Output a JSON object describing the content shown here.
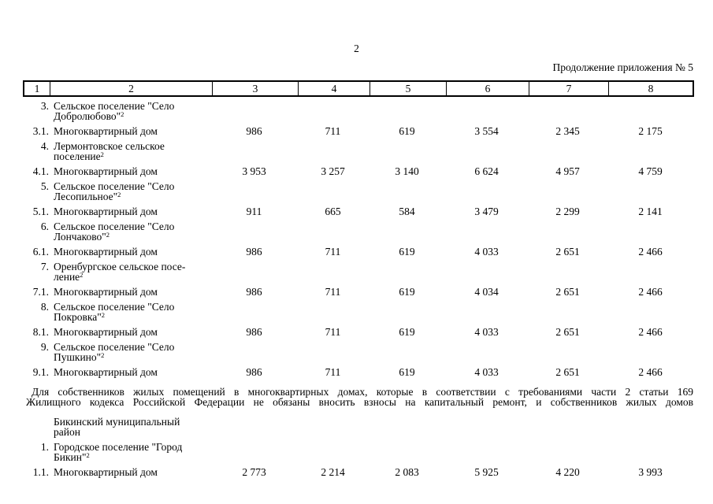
{
  "page": {
    "page_number": "2",
    "continuation_note": "Продолжение приложения № 5"
  },
  "table": {
    "column_headers": [
      "1",
      "2",
      "3",
      "4",
      "5",
      "6",
      "7",
      "8"
    ],
    "rows": [
      {
        "type": "name",
        "num": "3.",
        "name_lines": [
          "Сельское поселение \"Село",
          "Добролюбово\""
        ],
        "footnote": "2"
      },
      {
        "type": "data",
        "num": "3.1.",
        "name": "Многоквартирный дом",
        "values": [
          "986",
          "711",
          "619",
          "3 554",
          "2 345",
          "2 175"
        ]
      },
      {
        "type": "name",
        "num": "4.",
        "name_lines": [
          "Лермонтовское сельское",
          "поселение"
        ],
        "footnote": "2"
      },
      {
        "type": "data",
        "num": "4.1.",
        "name": "Многоквартирный дом",
        "values": [
          "3 953",
          "3 257",
          "3 140",
          "6 624",
          "4 957",
          "4 759"
        ]
      },
      {
        "type": "name",
        "num": "5.",
        "name_lines": [
          "Сельское поселение \"Село",
          "Лесопильное\""
        ],
        "footnote": "2"
      },
      {
        "type": "data",
        "num": "5.1.",
        "name": "Многоквартирный дом",
        "values": [
          "911",
          "665",
          "584",
          "3 479",
          "2 299",
          "2 141"
        ]
      },
      {
        "type": "name",
        "num": "6.",
        "name_lines": [
          "Сельское поселение \"Село",
          "Лончаково\""
        ],
        "footnote": "2"
      },
      {
        "type": "data",
        "num": "6.1.",
        "name": "Многоквартирный дом",
        "values": [
          "986",
          "711",
          "619",
          "4 033",
          "2 651",
          "2 466"
        ]
      },
      {
        "type": "name",
        "num": "7.",
        "name_lines": [
          "Оренбургское сельское посе-",
          "ление"
        ],
        "footnote": "2"
      },
      {
        "type": "data",
        "num": "7.1.",
        "name": "Многоквартирный дом",
        "values": [
          "986",
          "711",
          "619",
          "4 034",
          "2 651",
          "2 466"
        ]
      },
      {
        "type": "name",
        "num": "8.",
        "name_lines": [
          "Сельское поселение \"Село",
          "Покровка\""
        ],
        "footnote": "2"
      },
      {
        "type": "data",
        "num": "8.1.",
        "name": "Многоквартирный дом",
        "values": [
          "986",
          "711",
          "619",
          "4 033",
          "2 651",
          "2 466"
        ]
      },
      {
        "type": "name",
        "num": "9.",
        "name_lines": [
          "Сельское поселение \"Село",
          "Пушкино\""
        ],
        "footnote": "2"
      },
      {
        "type": "data",
        "num": "9.1.",
        "name": "Многоквартирный дом",
        "values": [
          "986",
          "711",
          "619",
          "4 033",
          "2 651",
          "2 466"
        ]
      },
      {
        "type": "note",
        "lines": [
          "Для собственников жилых помещений в многоквартирных домах, которые в соответствии с требованиями части 2 статьи 169",
          "Жилищного кодекса Российской Федерации не обязаны вносить взносы на капитальный ремонт, и собственников жилых домов"
        ]
      },
      {
        "type": "district",
        "name_lines": [
          "Бикинский муниципальный",
          "район"
        ]
      },
      {
        "type": "name",
        "num": "1.",
        "name_lines": [
          "Городское поселение \"Город",
          "Бикин\""
        ],
        "footnote": "2"
      },
      {
        "type": "data",
        "num": "1.1.",
        "name": "Многоквартирный дом",
        "values": [
          "2 773",
          "2 214",
          "2 083",
          "5 925",
          "4 220",
          "3 993"
        ]
      }
    ]
  }
}
